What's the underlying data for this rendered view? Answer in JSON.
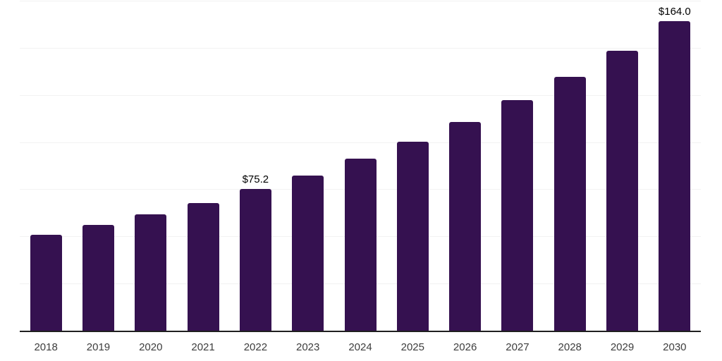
{
  "chart_data": {
    "type": "bar",
    "title": "",
    "xlabel": "",
    "ylabel": "",
    "categories": [
      "2018",
      "2019",
      "2020",
      "2021",
      "2022",
      "2023",
      "2024",
      "2025",
      "2026",
      "2027",
      "2028",
      "2029",
      "2030"
    ],
    "values": [
      51.0,
      56.1,
      61.7,
      67.8,
      75.2,
      82.4,
      91.3,
      100.4,
      110.8,
      122.4,
      134.8,
      148.6,
      164.0
    ],
    "data_labels": [
      {
        "category": "2022",
        "text": "$75.2"
      },
      {
        "category": "2030",
        "text": "$164.0"
      }
    ],
    "ylim": [
      0,
      175
    ],
    "gridline_values": [
      25,
      50,
      75,
      100,
      125,
      150,
      175
    ],
    "grid": "horizontal",
    "legend": "none",
    "colors": {
      "bar": "#351150",
      "axis_line": "#1f1f1f",
      "gridline": "#f2f2f2",
      "tick_label": "#3d3d3d",
      "data_label": "#000000",
      "background": "#ffffff"
    }
  }
}
